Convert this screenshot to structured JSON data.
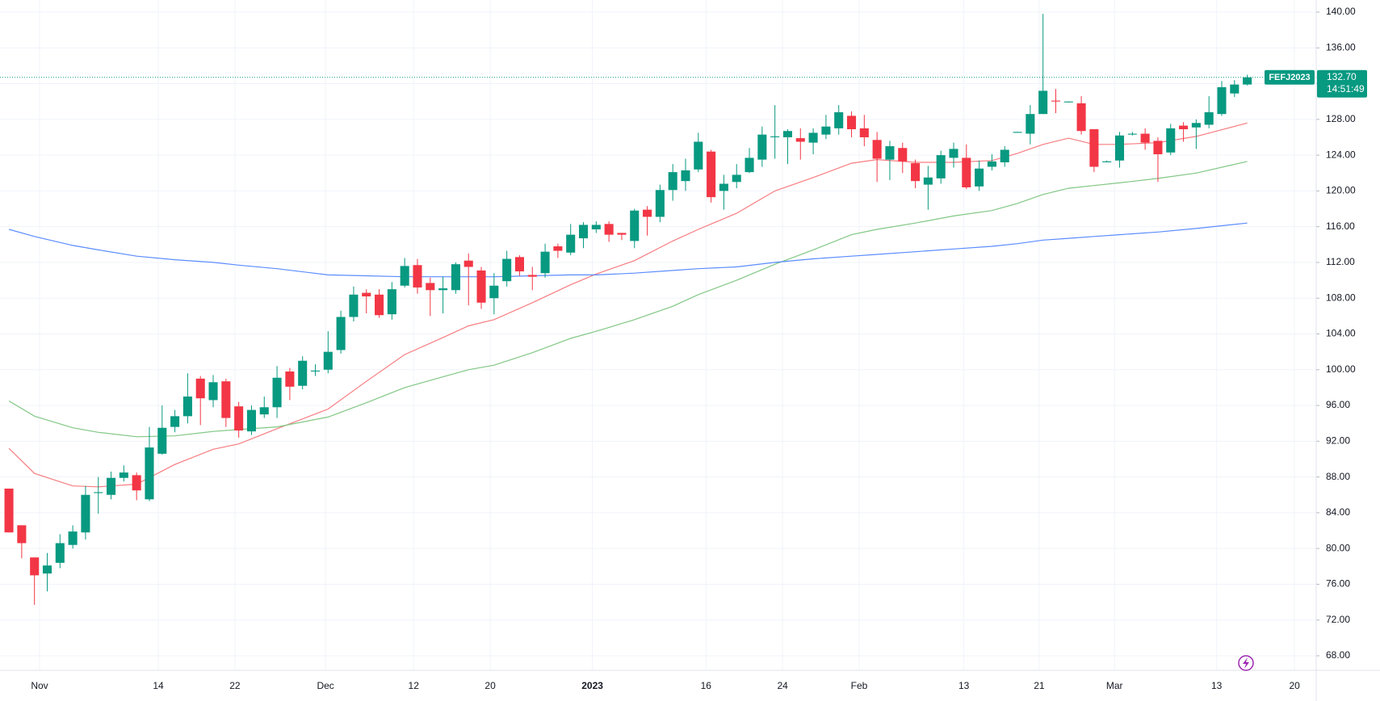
{
  "chart_data": {
    "type": "candlestick",
    "symbol": "FEFJ2023",
    "countdown": "14:51:49",
    "last_price": {
      "value": 132.7,
      "label": "132.70"
    },
    "up_color": "#089981",
    "down_color": "#f23645",
    "grid": true,
    "xlim": [
      -0.7,
      102.4
    ],
    "ylim": [
      68,
      140
    ],
    "xticks": [
      {
        "value": 2.4,
        "label": "Nov"
      },
      {
        "value": 11.7,
        "label": "14"
      },
      {
        "value": 17.7,
        "label": "22"
      },
      {
        "value": 24.8,
        "label": "Dec"
      },
      {
        "value": 31.7,
        "label": "12"
      },
      {
        "value": 37.7,
        "label": "20"
      },
      {
        "value": 45.7,
        "label": "2023"
      },
      {
        "value": 54.6,
        "label": "16"
      },
      {
        "value": 60.6,
        "label": "24"
      },
      {
        "value": 66.6,
        "label": "Feb"
      },
      {
        "value": 74.8,
        "label": "13"
      },
      {
        "value": 80.7,
        "label": "21"
      },
      {
        "value": 86.6,
        "label": "Mar"
      },
      {
        "value": 94.6,
        "label": "13"
      },
      {
        "value": 100.7,
        "label": "20"
      }
    ],
    "yticks": [
      {
        "value": 68,
        "label": "68.00"
      },
      {
        "value": 72,
        "label": "72.00"
      },
      {
        "value": 76,
        "label": "76.00"
      },
      {
        "value": 80,
        "label": "80.00"
      },
      {
        "value": 84,
        "label": "84.00"
      },
      {
        "value": 88,
        "label": "88.00"
      },
      {
        "value": 92,
        "label": "92.00"
      },
      {
        "value": 96,
        "label": "96.00"
      },
      {
        "value": 100,
        "label": "100.00"
      },
      {
        "value": 104,
        "label": "104.00"
      },
      {
        "value": 108,
        "label": "108.00"
      },
      {
        "value": 112,
        "label": "112.00"
      },
      {
        "value": 116,
        "label": "116.00"
      },
      {
        "value": 120,
        "label": "120.00"
      },
      {
        "value": 124,
        "label": "124.00"
      },
      {
        "value": 128,
        "label": "128.00"
      },
      {
        "value": 132,
        "label": "132.00"
      },
      {
        "value": 136,
        "label": "136.00"
      },
      {
        "value": 140,
        "label": "140.00"
      }
    ],
    "open": [
      86.7,
      82.6,
      79.0,
      77.2,
      78.4,
      80.4,
      81.8,
      86.2,
      86.0,
      87.9,
      88.2,
      85.5,
      90.6,
      93.6,
      94.8,
      99.0,
      96.6,
      98.7,
      95.9,
      93.1,
      95.0,
      95.8,
      99.8,
      98.2,
      99.8,
      100.0,
      102.2,
      105.9,
      108.6,
      108.4,
      106.2,
      109.4,
      111.7,
      109.7,
      108.9,
      108.9,
      112.2,
      111.1,
      108.0,
      109.9,
      112.6,
      110.6,
      110.8,
      113.8,
      113.1,
      114.7,
      115.7,
      116.3,
      115.3,
      114.4,
      117.9,
      117.1,
      120.1,
      121.1,
      122.4,
      124.4,
      120.0,
      121.0,
      122.1,
      123.5,
      126.0,
      126.0,
      125.9,
      125.4,
      126.3,
      127.0,
      128.4,
      127.0,
      125.7,
      123.5,
      124.8,
      123.1,
      120.7,
      121.4,
      123.7,
      123.7,
      120.5,
      122.7,
      123.2,
      126.5,
      126.4,
      128.6,
      130.1,
      129.9,
      129.8,
      126.9,
      123.2,
      123.4,
      126.3,
      126.4,
      125.6,
      124.3,
      127.3,
      127.1,
      127.4,
      128.6,
      130.9,
      131.9
    ],
    "high": [
      86.7,
      82.6,
      79.0,
      79.5,
      81.6,
      82.6,
      87.0,
      88.0,
      88.6,
      89.3,
      88.5,
      93.6,
      96.0,
      95.5,
      99.6,
      99.3,
      99.4,
      99.0,
      96.4,
      96.0,
      97.0,
      100.4,
      100.2,
      101.5,
      100.6,
      104.3,
      106.6,
      109.3,
      109.0,
      109.0,
      109.8,
      112.5,
      112.4,
      110.3,
      110.4,
      112.0,
      113.0,
      111.5,
      110.8,
      113.3,
      112.8,
      111.5,
      114.1,
      114.1,
      116.3,
      116.5,
      116.6,
      116.6,
      115.3,
      118.0,
      118.3,
      120.7,
      123.0,
      123.6,
      126.5,
      124.6,
      121.8,
      123.0,
      124.8,
      127.2,
      129.6,
      126.9,
      127.0,
      127.0,
      128.5,
      129.6,
      128.9,
      128.5,
      126.6,
      125.6,
      125.4,
      123.5,
      122.8,
      124.5,
      125.4,
      125.2,
      123.4,
      124.1,
      125.0,
      126.6,
      129.6,
      139.8,
      131.4,
      130.0,
      130.6,
      126.9,
      123.4,
      126.6,
      126.6,
      127.0,
      126.0,
      127.5,
      127.7,
      128.0,
      130.6,
      132.3,
      132.4,
      133.0
    ],
    "low": [
      81.8,
      78.9,
      73.7,
      75.2,
      77.8,
      80.0,
      81.0,
      83.9,
      85.5,
      87.5,
      85.4,
      85.3,
      90.5,
      93.0,
      94.0,
      93.8,
      95.8,
      93.6,
      92.4,
      92.7,
      94.6,
      94.6,
      96.6,
      97.8,
      99.3,
      99.6,
      101.8,
      105.4,
      106.3,
      105.8,
      105.6,
      109.2,
      108.5,
      106.0,
      106.3,
      108.5,
      107.2,
      106.8,
      106.2,
      109.3,
      110.5,
      108.9,
      110.3,
      112.5,
      112.8,
      113.6,
      115.3,
      114.3,
      114.5,
      113.6,
      115.0,
      116.5,
      118.9,
      120.0,
      122.1,
      118.7,
      117.9,
      120.3,
      122.0,
      122.7,
      123.6,
      123.0,
      123.5,
      124.1,
      125.8,
      126.3,
      126.0,
      125.0,
      121.0,
      121.2,
      122.0,
      120.3,
      117.9,
      120.8,
      122.6,
      120.2,
      120.0,
      122.3,
      122.7,
      126.5,
      125.2,
      128.6,
      128.7,
      129.9,
      126.3,
      122.1,
      123.2,
      122.6,
      126.2,
      124.6,
      121.0,
      124.0,
      125.5,
      124.7,
      127.0,
      128.4,
      130.5,
      131.8
    ],
    "close": [
      81.8,
      80.6,
      77.0,
      78.1,
      80.6,
      81.9,
      86.0,
      86.3,
      87.9,
      88.5,
      86.5,
      91.3,
      93.5,
      94.8,
      97.0,
      96.8,
      98.6,
      94.6,
      93.2,
      95.5,
      95.8,
      99.1,
      98.1,
      101.0,
      99.9,
      102.0,
      105.9,
      108.4,
      108.2,
      106.1,
      109.0,
      111.6,
      109.2,
      108.9,
      109.1,
      111.8,
      111.5,
      107.5,
      109.4,
      112.4,
      111.0,
      110.4,
      113.2,
      113.3,
      115.1,
      116.2,
      116.2,
      115.1,
      115.1,
      117.8,
      117.1,
      120.1,
      122.1,
      122.3,
      125.5,
      119.3,
      120.8,
      121.8,
      123.7,
      126.3,
      126.1,
      126.7,
      125.5,
      126.5,
      127.2,
      128.8,
      126.9,
      126.0,
      123.6,
      125.0,
      123.3,
      121.1,
      121.5,
      124.0,
      124.7,
      120.4,
      122.5,
      123.3,
      124.6,
      126.6,
      128.6,
      131.2,
      130.0,
      130.0,
      126.7,
      122.7,
      123.3,
      126.2,
      126.4,
      125.4,
      124.1,
      127.0,
      126.9,
      127.6,
      128.8,
      131.6,
      131.9,
      132.7
    ],
    "series": [
      {
        "color": "#f77c80",
        "x": [
          0,
          2,
          5,
          7,
          10,
          13,
          16,
          18,
          21,
          25,
          28,
          31,
          34,
          36,
          38,
          41,
          44,
          46,
          49,
          52,
          54,
          57,
          60,
          63,
          66,
          68,
          71,
          74,
          77,
          79,
          81,
          83,
          85,
          87,
          90,
          93,
          97
        ],
        "values": [
          91.2,
          88.4,
          87.0,
          86.9,
          87.2,
          89.4,
          91.1,
          91.7,
          93.4,
          95.6,
          98.7,
          101.7,
          103.6,
          104.9,
          105.6,
          107.5,
          109.5,
          110.7,
          112.2,
          114.4,
          115.7,
          117.5,
          120.0,
          121.5,
          123.1,
          123.5,
          123.2,
          123.2,
          123.4,
          124.2,
          125.2,
          125.9,
          125.2,
          125.2,
          125.4,
          126.1,
          127.6
        ]
      },
      {
        "color": "#81c784",
        "x": [
          0,
          2,
          5,
          7,
          10,
          13,
          16,
          18,
          21,
          25,
          28,
          31,
          34,
          36,
          38,
          41,
          44,
          46,
          49,
          52,
          54,
          57,
          60,
          63,
          66,
          68,
          71,
          74,
          77,
          79,
          81,
          83,
          85,
          87,
          90,
          93,
          97
        ],
        "values": [
          96.5,
          94.8,
          93.5,
          93.0,
          92.5,
          92.6,
          93.1,
          93.3,
          93.6,
          94.7,
          96.3,
          98.0,
          99.2,
          100.0,
          100.5,
          101.9,
          103.5,
          104.3,
          105.6,
          107.1,
          108.4,
          110.0,
          111.8,
          113.4,
          115.1,
          115.7,
          116.4,
          117.2,
          117.8,
          118.6,
          119.6,
          120.3,
          120.6,
          120.9,
          121.4,
          122.0,
          123.3
        ]
      },
      {
        "color": "#5b8cff",
        "x": [
          0,
          2,
          5,
          7,
          10,
          13,
          16,
          18,
          21,
          25,
          28,
          31,
          34,
          36,
          38,
          41,
          44,
          46,
          49,
          52,
          54,
          57,
          60,
          63,
          66,
          68,
          71,
          74,
          77,
          79,
          81,
          83,
          85,
          87,
          90,
          93,
          97
        ],
        "values": [
          115.7,
          114.9,
          113.9,
          113.4,
          112.7,
          112.3,
          112.0,
          111.7,
          111.3,
          110.6,
          110.5,
          110.4,
          110.4,
          110.4,
          110.4,
          110.5,
          110.6,
          110.6,
          110.8,
          111.1,
          111.3,
          111.5,
          112.0,
          112.4,
          112.7,
          112.9,
          113.2,
          113.5,
          113.8,
          114.1,
          114.5,
          114.7,
          114.9,
          115.1,
          115.4,
          115.8,
          116.4
        ]
      }
    ]
  }
}
